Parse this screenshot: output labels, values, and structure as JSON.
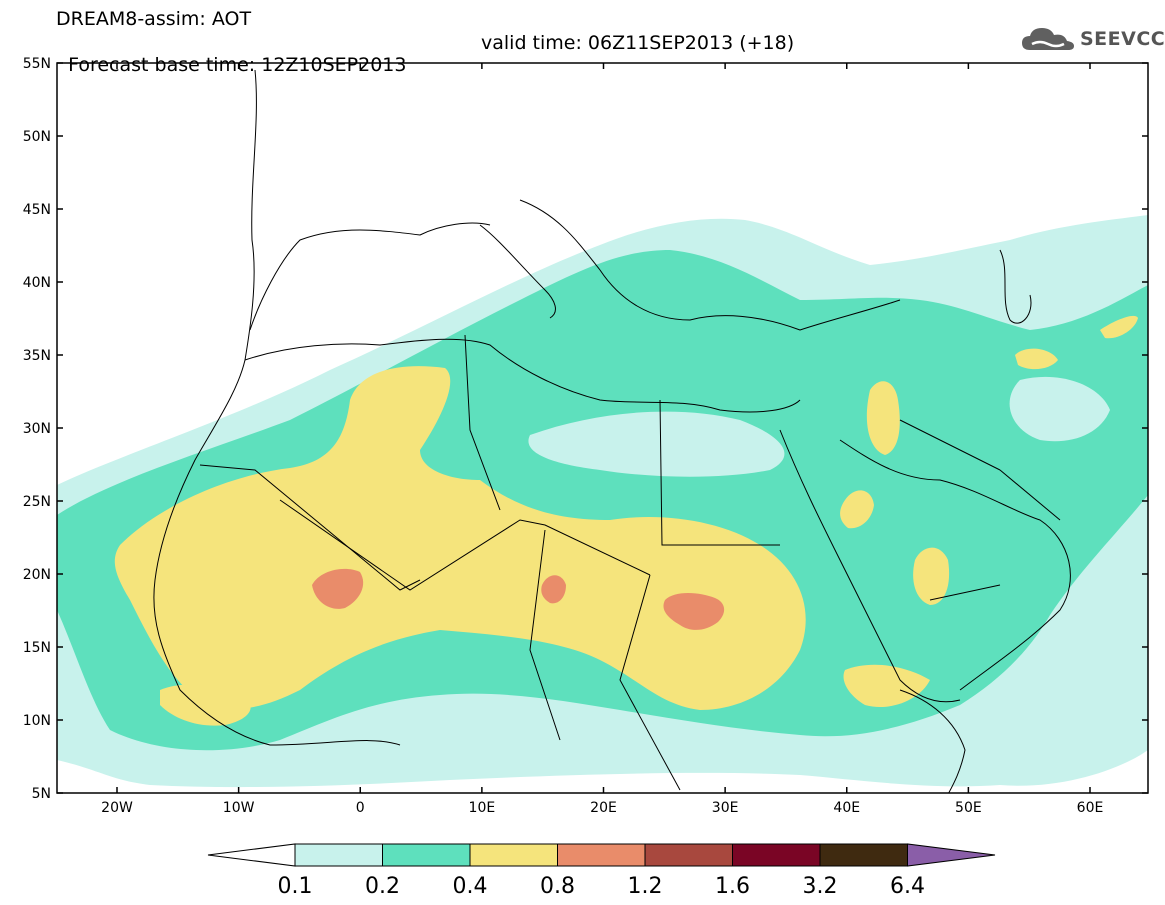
{
  "header": {
    "line1": "DREAM8-assim: AOT",
    "base": "Forecast base time: 12Z10SEP2013",
    "valid": "valid time: 06Z11SEP2013 (+18)"
  },
  "logo": {
    "text": "SEEVCCC",
    "icon": "cloud-icon"
  },
  "map": {
    "lat_labels": [
      "55N",
      "50N",
      "45N",
      "40N",
      "35N",
      "30N",
      "25N",
      "20N",
      "15N",
      "10N",
      "5N"
    ],
    "lon_labels": [
      "20W",
      "10W",
      "0",
      "10E",
      "20E",
      "30E",
      "40E",
      "50E",
      "60E"
    ]
  },
  "colorbar": {
    "labels": [
      "0.1",
      "0.2",
      "0.4",
      "0.8",
      "1.2",
      "1.6",
      "3.2",
      "6.4"
    ],
    "colors": [
      "#c8f2ec",
      "#5ee0bd",
      "#f5e47c",
      "#e98c6a",
      "#a8483e",
      "#7a0525",
      "#3f2a10",
      "#8a5ea8"
    ]
  }
}
